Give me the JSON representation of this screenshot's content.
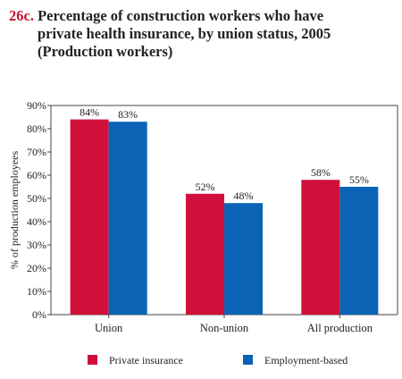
{
  "title": {
    "number": "26c.",
    "line1": "Percentage of construction workers who have",
    "line2": "private health insurance, by union status, 2005",
    "line3": "(Production workers)"
  },
  "chart_data": {
    "type": "bar",
    "categories": [
      "Union",
      "Non-union",
      "All production"
    ],
    "series": [
      {
        "name": "Private insurance",
        "values": [
          84,
          52,
          58
        ],
        "labels": [
          "84%",
          "52%",
          "58%"
        ],
        "color": "#d0103a"
      },
      {
        "name": "Employment-based",
        "values": [
          83,
          48,
          55
        ],
        "labels": [
          "83%",
          "48%",
          "55%"
        ],
        "color": "#0b63b6"
      }
    ],
    "ylabel": "% of production employees",
    "ylim": [
      0,
      90
    ],
    "yticks": [
      "0%",
      "10%",
      "20%",
      "30%",
      "40%",
      "50%",
      "60%",
      "70%",
      "80%",
      "90%"
    ],
    "legend_position": "bottom",
    "grid": false
  }
}
